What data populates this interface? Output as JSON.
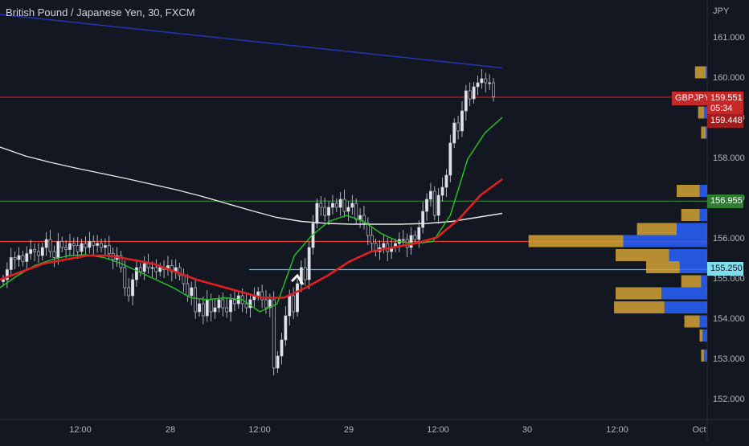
{
  "chart_data": {
    "type": "candlestick",
    "title": "British Pound / Japanese Yen, 30, FXCM",
    "symbol": "GBPJPY",
    "currency": "JPY",
    "y_ticks": [
      "161.000",
      "160.000",
      "159.000",
      "158.000",
      "157.000",
      "156.000",
      "155.000",
      "154.000",
      "153.000",
      "152.000"
    ],
    "ylim": [
      151.5,
      161.9
    ],
    "x_ticks": [
      "12:00",
      "28",
      "12:00",
      "29",
      "12:00",
      "30",
      "12:00",
      "Oct"
    ],
    "price_labels": {
      "last_price": "159.551",
      "countdown": "05:34",
      "other_price": "159.448",
      "green_line": "156.955",
      "blue_line": "155.250"
    },
    "horizontal_lines": [
      {
        "price": 159.54,
        "color": "#b71c1c"
      },
      {
        "price": 156.955,
        "color": "#2e7d32"
      },
      {
        "price": 155.95,
        "color": "#e53935"
      },
      {
        "price": 155.25,
        "color": "#4fc3f7"
      }
    ],
    "candles_close": [
      155.0,
      155.25,
      155.55,
      155.5,
      155.6,
      155.45,
      155.65,
      155.75,
      155.7,
      155.6,
      155.8,
      156.0,
      155.7,
      155.55,
      155.95,
      155.8,
      155.75,
      155.9,
      155.85,
      155.7,
      155.9,
      155.8,
      155.95,
      155.85,
      155.9,
      155.8,
      155.85,
      155.65,
      155.5,
      155.6,
      155.3,
      154.8,
      154.6,
      155.0,
      155.3,
      155.2,
      155.4,
      155.3,
      155.3,
      155.2,
      155.3,
      155.25,
      155.35,
      155.2,
      155.3,
      155.1,
      154.9,
      154.6,
      154.8,
      154.2,
      154.4,
      154.1,
      154.5,
      154.2,
      154.3,
      154.5,
      154.3,
      154.2,
      154.5,
      154.4,
      154.6,
      154.4,
      154.3,
      154.5,
      154.6,
      154.7,
      154.5,
      154.3,
      154.5,
      152.8,
      153.1,
      153.5,
      154.1,
      154.6,
      154.2,
      154.9,
      155.3,
      155.0,
      155.8,
      156.4,
      156.9,
      156.8,
      156.6,
      156.8,
      156.9,
      156.8,
      157.0,
      156.7,
      156.8,
      156.9,
      156.5,
      156.6,
      156.4,
      156.1,
      155.9,
      155.7,
      155.8,
      155.9,
      155.7,
      155.8,
      155.9,
      156.0,
      156.0,
      155.8,
      156.1,
      156.0,
      156.3,
      156.7,
      157.0,
      157.2,
      156.6,
      157.1,
      157.3,
      157.6,
      158.4,
      158.9,
      158.7,
      159.2,
      159.7,
      159.5,
      159.8,
      159.9,
      160.0,
      159.9,
      159.9,
      159.55
    ],
    "moving_averages": [
      {
        "name": "",
        "color": "#2733b0",
        "values": [
          161.6,
          161.53,
          161.46,
          161.39,
          161.32,
          161.25,
          161.18,
          161.11,
          161.04,
          160.97,
          160.9,
          160.83,
          160.76,
          160.69,
          160.62,
          160.55,
          160.48,
          160.41,
          160.34,
          160.27
        ]
      },
      {
        "name": "",
        "color": "#e8e8e8",
        "values": [
          158.3,
          158.08,
          157.92,
          157.78,
          157.65,
          157.52,
          157.38,
          157.24,
          157.08,
          156.9,
          156.72,
          156.55,
          156.45,
          156.4,
          156.38,
          156.38,
          156.38,
          156.4,
          156.45,
          156.55,
          156.65
        ]
      },
      {
        "name": "",
        "color": "#22c922",
        "values": [
          154.8,
          155.1,
          155.35,
          155.5,
          155.6,
          155.62,
          155.55,
          155.4,
          155.2,
          155.0,
          154.8,
          154.55,
          154.5,
          154.55,
          154.5,
          154.2,
          154.4,
          155.6,
          156.1,
          156.45,
          156.6,
          156.45,
          156.15,
          155.95,
          155.9,
          155.95,
          156.6,
          158.0,
          158.65,
          159.04
        ]
      },
      {
        "name": "",
        "color": "#e02020",
        "values": [
          155.0,
          155.2,
          155.4,
          155.5,
          155.6,
          155.6,
          155.5,
          155.4,
          155.2,
          155.0,
          154.85,
          154.7,
          154.55,
          154.55,
          154.8,
          155.1,
          155.45,
          155.7,
          155.8,
          155.9,
          156.05,
          156.5,
          157.1,
          157.5
        ]
      }
    ],
    "volume_profile": [
      {
        "price": 160.15,
        "up": 0.07,
        "down": 0.01
      },
      {
        "price": 159.15,
        "up": 0.04,
        "down": 0.02
      },
      {
        "price": 158.65,
        "up": 0.03,
        "down": 0.01
      },
      {
        "price": 157.2,
        "up": 0.15,
        "down": 0.05
      },
      {
        "price": 156.6,
        "up": 0.12,
        "down": 0.05
      },
      {
        "price": 156.25,
        "up": 0.26,
        "down": 0.2
      },
      {
        "price": 155.95,
        "up": 0.62,
        "down": 0.55
      },
      {
        "price": 155.6,
        "up": 0.35,
        "down": 0.25
      },
      {
        "price": 155.3,
        "up": 0.22,
        "down": 0.18
      },
      {
        "price": 154.95,
        "up": 0.13,
        "down": 0.04
      },
      {
        "price": 154.65,
        "up": 0.3,
        "down": 0.3
      },
      {
        "price": 154.3,
        "up": 0.33,
        "down": 0.28
      },
      {
        "price": 153.95,
        "up": 0.1,
        "down": 0.05
      },
      {
        "price": 153.6,
        "up": 0.02,
        "down": 0.03
      },
      {
        "price": 153.1,
        "up": 0.02,
        "down": 0.02
      }
    ]
  }
}
